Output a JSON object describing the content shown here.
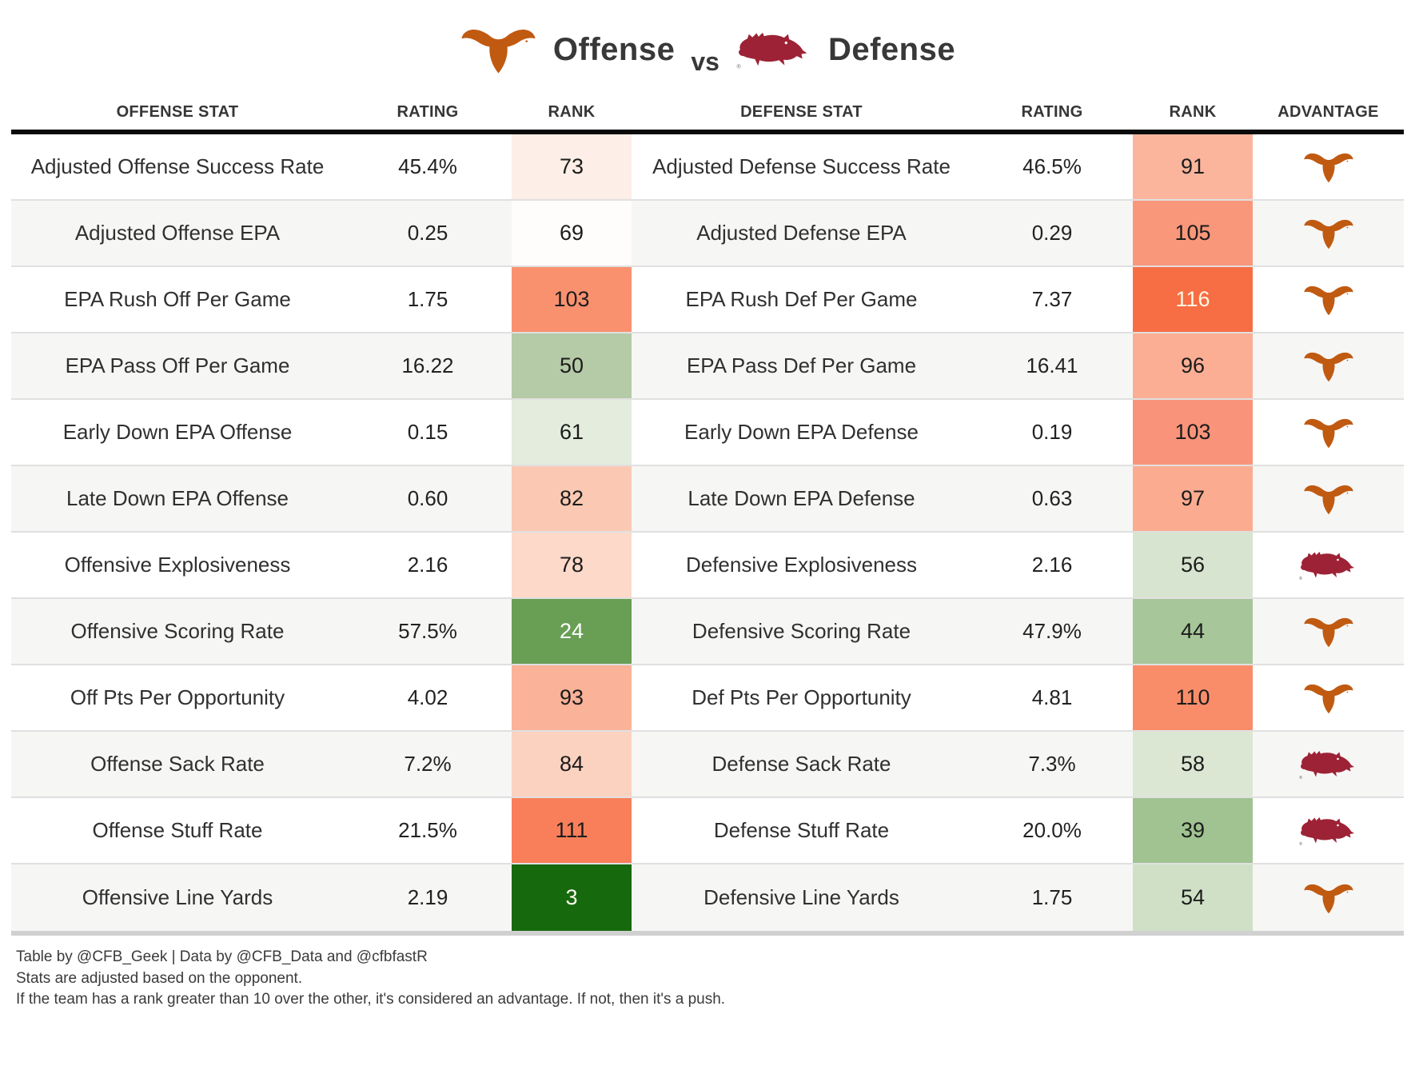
{
  "title": {
    "left_label": "Offense",
    "vs": "vs",
    "right_label": "Defense"
  },
  "colors": {
    "texas_orange": "#c05a11",
    "arkansas_cardinal": "#9d2235",
    "good_rank_green": "#17690e",
    "bad_rank_red": "#f76d44",
    "row_stripe": "#f6f6f5"
  },
  "table": {
    "headers": [
      "OFFENSE STAT",
      "RATING",
      "RANK",
      "DEFENSE STAT",
      "RATING",
      "RANK",
      "ADVANTAGE"
    ],
    "rows": [
      {
        "offense_stat": "Adjusted Offense Success Rate",
        "offense_rating": "45.4%",
        "offense_rank": "73",
        "offense_rank_bg": "#fdeee7",
        "offense_rank_fg": "#1c1c1c",
        "defense_stat": "Adjusted Defense Success Rate",
        "defense_rating": "46.5%",
        "defense_rank": "91",
        "defense_rank_bg": "#fbb59d",
        "defense_rank_fg": "#1c1c1c",
        "advantage": "texas"
      },
      {
        "offense_stat": "Adjusted Offense EPA",
        "offense_rating": "0.25",
        "offense_rank": "69",
        "offense_rank_bg": "#fffdfb",
        "offense_rank_fg": "#1c1c1c",
        "defense_stat": "Adjusted Defense EPA",
        "defense_rating": "0.29",
        "defense_rank": "105",
        "defense_rank_bg": "#f9977b",
        "defense_rank_fg": "#1c1c1c",
        "advantage": "texas"
      },
      {
        "offense_stat": "EPA Rush Off Per Game",
        "offense_rating": "1.75",
        "offense_rank": "103",
        "offense_rank_bg": "#f9916f",
        "offense_rank_fg": "#1c1c1c",
        "defense_stat": "EPA Rush Def Per Game",
        "defense_rating": "7.37",
        "defense_rank": "116",
        "defense_rank_bg": "#f76d44",
        "defense_rank_fg": "#fffbe4",
        "advantage": "texas"
      },
      {
        "offense_stat": "EPA Pass Off Per Game",
        "offense_rating": "16.22",
        "offense_rank": "50",
        "offense_rank_bg": "#b5caa7",
        "offense_rank_fg": "#1c1c1c",
        "defense_stat": "EPA Pass Def Per Game",
        "defense_rating": "16.41",
        "defense_rank": "96",
        "defense_rank_bg": "#fbae94",
        "defense_rank_fg": "#1c1c1c",
        "advantage": "texas"
      },
      {
        "offense_stat": "Early Down EPA Offense",
        "offense_rating": "0.15",
        "offense_rank": "61",
        "offense_rank_bg": "#e3ecdd",
        "offense_rank_fg": "#1c1c1c",
        "defense_stat": "Early Down EPA Defense",
        "defense_rating": "0.19",
        "defense_rank": "103",
        "defense_rank_bg": "#f9947a",
        "defense_rank_fg": "#1c1c1c",
        "advantage": "texas"
      },
      {
        "offense_stat": "Late Down EPA Offense",
        "offense_rating": "0.60",
        "offense_rank": "82",
        "offense_rank_bg": "#fbc9b3",
        "offense_rank_fg": "#1c1c1c",
        "defense_stat": "Late Down EPA Defense",
        "defense_rating": "0.63",
        "defense_rank": "97",
        "defense_rank_bg": "#fbac90",
        "defense_rank_fg": "#1c1c1c",
        "advantage": "texas"
      },
      {
        "offense_stat": "Offensive Explosiveness",
        "offense_rating": "2.16",
        "offense_rank": "78",
        "offense_rank_bg": "#fcd9c9",
        "offense_rank_fg": "#1c1c1c",
        "defense_stat": "Defensive Explosiveness",
        "defense_rating": "2.16",
        "defense_rank": "56",
        "defense_rank_bg": "#d7e4cf",
        "defense_rank_fg": "#1c1c1c",
        "advantage": "arkansas"
      },
      {
        "offense_stat": "Offensive Scoring Rate",
        "offense_rating": "57.5%",
        "offense_rank": "24",
        "offense_rank_bg": "#699e55",
        "offense_rank_fg": "#ffffff",
        "defense_stat": "Defensive Scoring Rate",
        "defense_rating": "47.9%",
        "defense_rank": "44",
        "defense_rank_bg": "#a7c699",
        "defense_rank_fg": "#1c1c1c",
        "advantage": "texas"
      },
      {
        "offense_stat": "Off Pts Per Opportunity",
        "offense_rating": "4.02",
        "offense_rank": "93",
        "offense_rank_bg": "#fab298",
        "offense_rank_fg": "#1c1c1c",
        "defense_stat": "Def Pts Per Opportunity",
        "defense_rating": "4.81",
        "defense_rank": "110",
        "defense_rank_bg": "#f98d6a",
        "defense_rank_fg": "#1c1c1c",
        "advantage": "texas"
      },
      {
        "offense_stat": "Offense Sack Rate",
        "offense_rating": "7.2%",
        "offense_rank": "84",
        "offense_rank_bg": "#fbd2c0",
        "offense_rank_fg": "#1c1c1c",
        "defense_stat": "Defense Sack Rate",
        "defense_rating": "7.3%",
        "defense_rank": "58",
        "defense_rank_bg": "#dbe7d3",
        "defense_rank_fg": "#1c1c1c",
        "advantage": "arkansas"
      },
      {
        "offense_stat": "Offense Stuff Rate",
        "offense_rating": "21.5%",
        "offense_rank": "111",
        "offense_rank_bg": "#f87f5a",
        "offense_rank_fg": "#1c1c1c",
        "defense_stat": "Defense Stuff Rate",
        "defense_rating": "20.0%",
        "defense_rank": "39",
        "defense_rank_bg": "#a0c391",
        "defense_rank_fg": "#1c1c1c",
        "advantage": "arkansas"
      },
      {
        "offense_stat": "Offensive Line Yards",
        "offense_rating": "2.19",
        "offense_rank": "3",
        "offense_rank_bg": "#17690e",
        "offense_rank_fg": "#fffef0",
        "defense_stat": "Defensive Line Yards",
        "defense_rating": "1.75",
        "defense_rank": "54",
        "defense_rank_bg": "#cfe0c6",
        "defense_rank_fg": "#1c1c1c",
        "advantage": "texas"
      }
    ]
  },
  "footer": {
    "line1": "Table by @CFB_Geek | Data by @CFB_Data and @cfbfastR",
    "line2": "Stats are adjusted based on the opponent.",
    "line3": "If the team has a rank greater than 10 over the other, it's considered an advantage. If not, then it's a push."
  },
  "chart_data": {
    "type": "table",
    "title": "Texas Offense vs Arkansas Defense",
    "columns": [
      "OFFENSE STAT",
      "RATING",
      "RANK",
      "DEFENSE STAT",
      "RATING",
      "RANK",
      "ADVANTAGE"
    ],
    "rows": [
      [
        "Adjusted Offense Success Rate",
        "45.4%",
        73,
        "Adjusted Defense Success Rate",
        "46.5%",
        91,
        "Texas"
      ],
      [
        "Adjusted Offense EPA",
        "0.25",
        69,
        "Adjusted Defense EPA",
        "0.29",
        105,
        "Texas"
      ],
      [
        "EPA Rush Off Per Game",
        "1.75",
        103,
        "EPA Rush Def Per Game",
        "7.37",
        116,
        "Texas"
      ],
      [
        "EPA Pass Off Per Game",
        "16.22",
        50,
        "EPA Pass Def Per Game",
        "16.41",
        96,
        "Texas"
      ],
      [
        "Early Down EPA Offense",
        "0.15",
        61,
        "Early Down EPA Defense",
        "0.19",
        103,
        "Texas"
      ],
      [
        "Late Down EPA Offense",
        "0.60",
        82,
        "Late Down EPA Defense",
        "0.63",
        97,
        "Texas"
      ],
      [
        "Offensive Explosiveness",
        "2.16",
        78,
        "Defensive Explosiveness",
        "2.16",
        56,
        "Arkansas"
      ],
      [
        "Offensive Scoring Rate",
        "57.5%",
        24,
        "Defensive Scoring Rate",
        "47.9%",
        44,
        "Texas"
      ],
      [
        "Off Pts Per Opportunity",
        "4.02",
        93,
        "Def Pts Per Opportunity",
        "4.81",
        110,
        "Texas"
      ],
      [
        "Offense Sack Rate",
        "7.2%",
        84,
        "Defense Sack Rate",
        "7.3%",
        58,
        "Arkansas"
      ],
      [
        "Offense Stuff Rate",
        "21.5%",
        111,
        "Defense Stuff Rate",
        "20.0%",
        39,
        "Arkansas"
      ],
      [
        "Offensive Line Yards",
        "2.19",
        3,
        "Defensive Line Yards",
        "1.75",
        54,
        "Texas"
      ]
    ]
  }
}
